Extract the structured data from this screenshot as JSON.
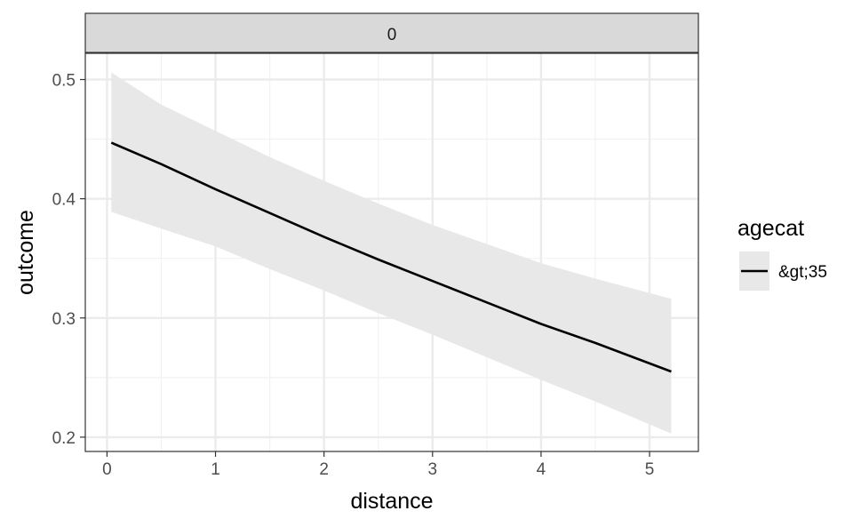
{
  "chart_data": {
    "type": "line",
    "facet_label": "0",
    "xlabel": "distance",
    "ylabel": "outcome",
    "xlim": [
      -0.2,
      5.45
    ],
    "ylim": [
      0.188,
      0.522
    ],
    "x_ticks": [
      0,
      1,
      2,
      3,
      4,
      5
    ],
    "x_tick_labels": [
      "0",
      "1",
      "2",
      "3",
      "4",
      "5"
    ],
    "y_ticks": [
      0.2,
      0.3,
      0.4,
      0.5
    ],
    "y_tick_labels": [
      "0.2",
      "0.3",
      "0.4",
      "0.5"
    ],
    "grid": true,
    "legend": {
      "title": "agecat",
      "placement": "right",
      "entries": [
        "&gt;35"
      ]
    },
    "series": [
      {
        "name": "&gt;35",
        "color": "#000000",
        "x": [
          0.04,
          0.5,
          1.0,
          1.5,
          2.0,
          2.5,
          3.0,
          3.5,
          4.0,
          4.5,
          5.2
        ],
        "y": [
          0.447,
          0.429,
          0.408,
          0.388,
          0.368,
          0.349,
          0.331,
          0.313,
          0.295,
          0.279,
          0.255
        ],
        "lower": [
          0.389,
          0.375,
          0.36,
          0.341,
          0.323,
          0.304,
          0.286,
          0.267,
          0.248,
          0.23,
          0.203
        ],
        "upper": [
          0.506,
          0.479,
          0.457,
          0.435,
          0.415,
          0.396,
          0.378,
          0.362,
          0.346,
          0.333,
          0.316
        ]
      }
    ],
    "ribbon_color": "#e8e8e8",
    "panel_border_color": "#333333",
    "strip_fill": "#d9d9d9",
    "grid_major_color": "#ebebeb",
    "grid_minor_color": "#f2f2f2"
  }
}
